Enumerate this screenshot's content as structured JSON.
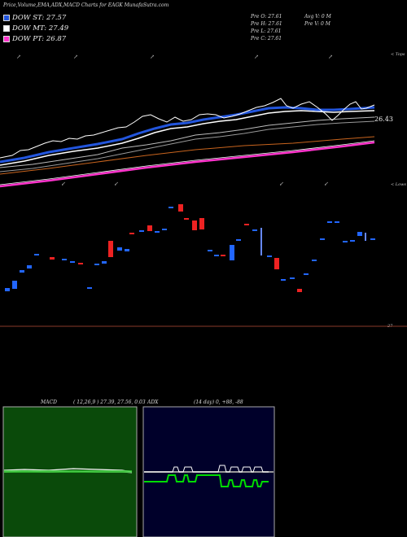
{
  "header": {
    "title": "Price,Volume,EMA,ADX,MACD Charts for EAGK MunafaSutra.com"
  },
  "legend": [
    {
      "label": "DOW ST: 27.57",
      "color": "#2255dd"
    },
    {
      "label": "DOW MT: 27.49",
      "color": "#ffffff"
    },
    {
      "label": "DOW PT: 26.87",
      "color": "#ff33cc"
    }
  ],
  "quote": {
    "pre_o": "Pre   O: 27.61",
    "pre_h": "Pre   H: 27.61",
    "pre_l": "Pre   L: 27.61",
    "pre_c": "Pre   C: 27.61",
    "avg_v": "Avg V: 0   M",
    "pre_v": "Pre   V: 0   M"
  },
  "axis_labels": {
    "tops": "< Tops",
    "lows": "< Lows",
    "price_26_43": "26.43",
    "price_27": "27"
  },
  "panels": {
    "macd_label": "MACD",
    "macd_values": "( 12,26,9 ) 27.39,  27.56,  0.03",
    "adx_label": "ADX",
    "adx_values": "(14  day) 0,  +88,  -88"
  },
  "colors": {
    "dow_st": "#2255dd",
    "dow_mt": "#ffffff",
    "dow_pt": "#ff33cc",
    "ema_long": "#c8641e",
    "up_candle": "#2266ff",
    "down_candle": "#ee2222",
    "macd_bg": "#0a4a0a",
    "adx_bg": "#00002a"
  },
  "chart_data": {
    "type": "line",
    "x": [
      0,
      1,
      2,
      3,
      4,
      5,
      6,
      7,
      8,
      9,
      10,
      11,
      12,
      13,
      14,
      15,
      16,
      17,
      18,
      19,
      20,
      21,
      22,
      23,
      24,
      25,
      26,
      27,
      28,
      29,
      30,
      31,
      32,
      33,
      34,
      35,
      36,
      37,
      38,
      39,
      40,
      41,
      42,
      43,
      44,
      45,
      46,
      47,
      48,
      49,
      50,
      51,
      52,
      53,
      54,
      55,
      56,
      57,
      58,
      59,
      60
    ],
    "series": [
      {
        "name": "DOW ST",
        "values": [
          25.9,
          25.95,
          26.0,
          26.05,
          26.1,
          26.12,
          26.15,
          26.2,
          26.25,
          26.28,
          26.3,
          26.32,
          26.35,
          26.38,
          26.4,
          26.42,
          26.45,
          26.48,
          26.5,
          26.55,
          26.6,
          26.65,
          26.7,
          26.75,
          26.8,
          26.85,
          26.9,
          26.95,
          26.97,
          27.0,
          27.02,
          27.05,
          27.08,
          27.1,
          27.12,
          27.15,
          27.18,
          27.2,
          27.22,
          27.25,
          27.28,
          27.3,
          27.32,
          27.35,
          27.38,
          27.4,
          27.42,
          27.44,
          27.45,
          27.46,
          27.47,
          27.48,
          27.5,
          27.5,
          27.51,
          27.52,
          27.53,
          27.55,
          27.56,
          27.57,
          27.57
        ]
      },
      {
        "name": "DOW MT",
        "values": [
          25.7,
          25.74,
          25.78,
          25.82,
          25.86,
          25.9,
          25.94,
          25.98,
          26.02,
          26.05,
          26.08,
          26.11,
          26.14,
          26.17,
          26.2,
          26.23,
          26.26,
          26.29,
          26.32,
          26.35,
          26.38,
          26.41,
          26.44,
          26.47,
          26.5,
          26.53,
          26.56,
          26.59,
          26.62,
          26.65,
          26.68,
          26.71,
          26.74,
          26.77,
          26.8,
          26.83,
          26.86,
          26.89,
          26.92,
          26.95,
          26.98,
          27.01,
          27.04,
          27.07,
          27.1,
          27.13,
          27.16,
          27.19,
          27.22,
          27.25,
          27.28,
          27.31,
          27.34,
          27.36,
          27.38,
          27.4,
          27.42,
          27.44,
          27.46,
          27.48,
          27.49
        ]
      },
      {
        "name": "DOW PT",
        "values": [
          25.3,
          25.33,
          25.36,
          25.39,
          25.42,
          25.45,
          25.48,
          25.51,
          25.54,
          25.57,
          25.6,
          25.63,
          25.66,
          25.69,
          25.72,
          25.75,
          25.78,
          25.81,
          25.84,
          25.87,
          25.9,
          25.93,
          25.96,
          25.99,
          26.02,
          26.05,
          26.08,
          26.11,
          26.14,
          26.17,
          26.2,
          26.23,
          26.26,
          26.29,
          26.32,
          26.35,
          26.38,
          26.41,
          26.44,
          26.47,
          26.5,
          26.53,
          26.56,
          26.59,
          26.62,
          26.65,
          26.67,
          26.69,
          26.71,
          26.73,
          26.75,
          26.77,
          26.79,
          26.8,
          26.81,
          26.82,
          26.83,
          26.84,
          26.85,
          26.86,
          26.87
        ]
      }
    ],
    "ylim": [
      25.0,
      28.0
    ],
    "title": "Price,Volume,EMA,ADX,MACD Charts for EAGK MunafaSutra.com",
    "xlabel": "",
    "ylabel": "",
    "grid": false
  }
}
